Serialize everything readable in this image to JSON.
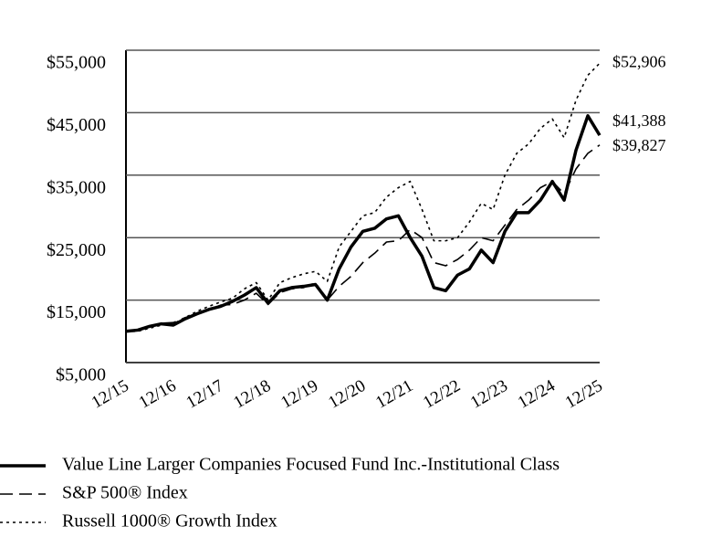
{
  "chart_data": {
    "type": "line",
    "categories": [
      "12/15",
      null,
      null,
      null,
      "12/16",
      null,
      null,
      null,
      "12/17",
      null,
      null,
      null,
      "12/18",
      null,
      null,
      null,
      "12/19",
      null,
      null,
      null,
      "12/20",
      null,
      null,
      null,
      "12/21",
      null,
      null,
      null,
      "12/22",
      null,
      null,
      null,
      "12/23",
      null,
      null,
      null,
      "12/24",
      null,
      null,
      null,
      "12/25"
    ],
    "ylim": [
      5000,
      55000
    ],
    "yticks": [
      {
        "value": 5000,
        "label": "$5,000"
      },
      {
        "value": 15000,
        "label": "$15,000"
      },
      {
        "value": 25000,
        "label": "$25,000"
      },
      {
        "value": 35000,
        "label": "$35,000"
      },
      {
        "value": 45000,
        "label": "$45,000"
      },
      {
        "value": 55000,
        "label": "$55,000"
      }
    ],
    "grid": true,
    "legend": "bottom",
    "series": [
      {
        "name": "Value Line Larger Companies Focused Fund Inc.-Institutional Class",
        "color": "#000000",
        "style": "solid",
        "values": [
          10000,
          10200,
          10800,
          11200,
          11000,
          12000,
          12800,
          13500,
          14000,
          14800,
          15800,
          17000,
          14500,
          16500,
          17000,
          17200,
          17500,
          15000,
          20000,
          23500,
          26000,
          26500,
          28000,
          28500,
          25000,
          22000,
          17000,
          16500,
          19000,
          20000,
          23000,
          21000,
          26000,
          29000,
          29000,
          31000,
          34000,
          31000,
          39000,
          44500,
          41388
        ],
        "value_labels": [
          null,
          null,
          null,
          null,
          null,
          null,
          null,
          null,
          null,
          null,
          null,
          null,
          null,
          null,
          null,
          null,
          null,
          null,
          null,
          null,
          null,
          null,
          null,
          null,
          null,
          null,
          null,
          null,
          null,
          null,
          null,
          null,
          null,
          null,
          null,
          null,
          null,
          null,
          null,
          null,
          "$41,388"
        ]
      },
      {
        "name": "S&P 500® Index",
        "color": "#000000",
        "style": "dashed",
        "values": [
          10000,
          10300,
          10700,
          11300,
          11400,
          12200,
          12700,
          13400,
          14200,
          14300,
          15000,
          16100,
          14300,
          16200,
          16800,
          17000,
          17800,
          15000,
          17200,
          18800,
          21000,
          22500,
          24300,
          24500,
          26300,
          25000,
          21000,
          20500,
          21500,
          23000,
          25000,
          24500,
          27000,
          29500,
          31000,
          33000,
          34000,
          32000,
          36000,
          38500,
          39827
        ],
        "value_labels": [
          null,
          null,
          null,
          null,
          null,
          null,
          null,
          null,
          null,
          null,
          null,
          null,
          null,
          null,
          null,
          null,
          null,
          null,
          null,
          null,
          null,
          null,
          null,
          null,
          null,
          null,
          null,
          null,
          null,
          null,
          null,
          null,
          null,
          null,
          null,
          null,
          null,
          null,
          null,
          null,
          "$39,827"
        ]
      },
      {
        "name": "Russell 1000® Growth Index",
        "color": "#000000",
        "style": "dotted",
        "values": [
          10000,
          10000,
          10500,
          11000,
          11200,
          12200,
          13200,
          14000,
          14700,
          15300,
          16800,
          17800,
          15000,
          17800,
          18600,
          19200,
          19600,
          18000,
          23500,
          26000,
          28500,
          29000,
          31500,
          33000,
          34000,
          29500,
          24500,
          24500,
          25000,
          27500,
          30500,
          29500,
          35000,
          38500,
          40000,
          42500,
          44000,
          41000,
          47000,
          51000,
          52906
        ],
        "value_labels": [
          null,
          null,
          null,
          null,
          null,
          null,
          null,
          null,
          null,
          null,
          null,
          null,
          null,
          null,
          null,
          null,
          null,
          null,
          null,
          null,
          null,
          null,
          null,
          null,
          null,
          null,
          null,
          null,
          null,
          null,
          null,
          null,
          null,
          null,
          null,
          null,
          null,
          null,
          null,
          null,
          "$52,906"
        ]
      }
    ]
  }
}
